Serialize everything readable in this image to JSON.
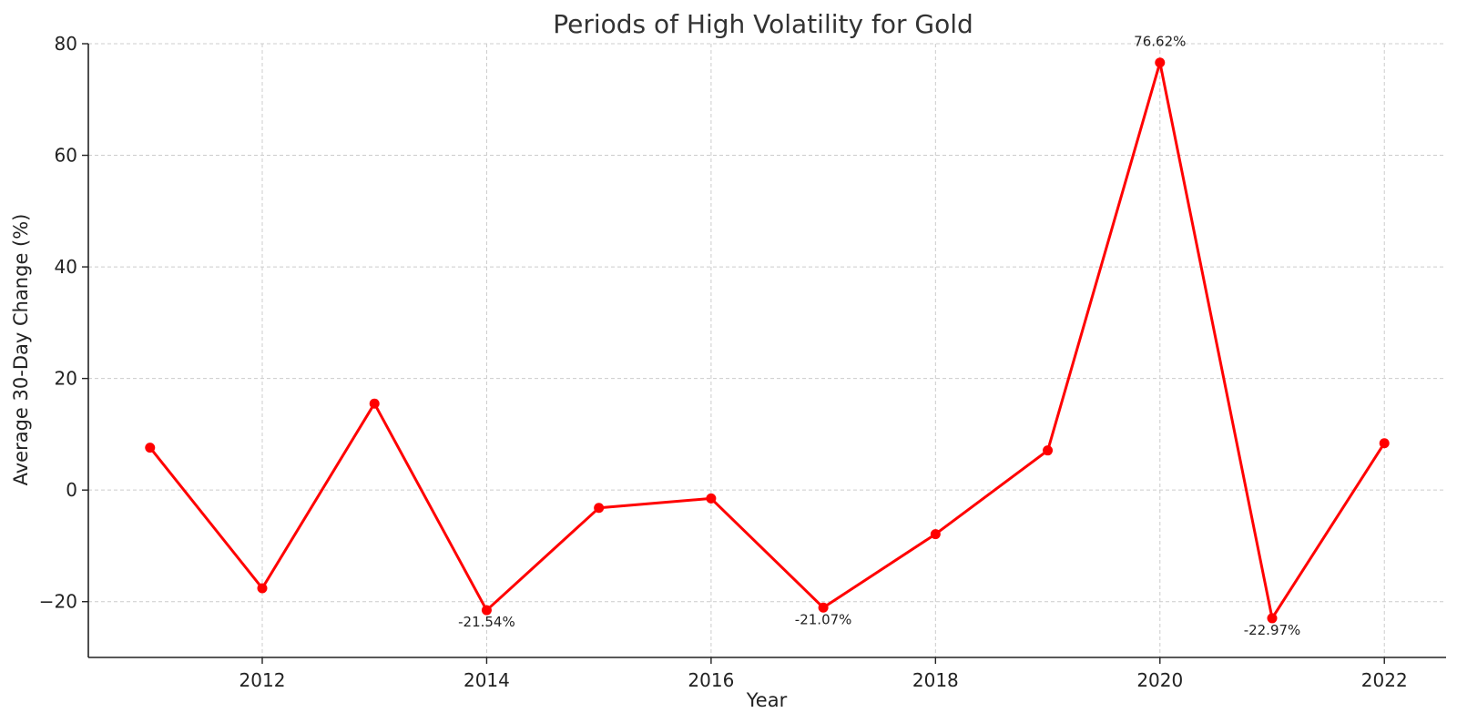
{
  "chart_data": {
    "type": "line",
    "title": "Periods of High Volatility for Gold",
    "xlabel": "Year",
    "ylabel": "Average 30-Day Change (%)",
    "x": [
      2011,
      2012,
      2013,
      2014,
      2015,
      2016,
      2017,
      2018,
      2019,
      2020,
      2021,
      2022
    ],
    "series": [
      {
        "values": [
          7.6,
          -17.6,
          15.5,
          -21.54,
          -3.2,
          -1.5,
          -21.07,
          -7.9,
          7.1,
          76.62,
          -22.97,
          8.4
        ],
        "color": "#ff0000"
      }
    ],
    "annotations": [
      {
        "x": 2014,
        "y": -21.54,
        "text": "-21.54%"
      },
      {
        "x": 2017,
        "y": -21.07,
        "text": "-21.07%"
      },
      {
        "x": 2020,
        "y": 76.62,
        "text": "76.62%"
      },
      {
        "x": 2021,
        "y": -22.97,
        "text": "-22.97%"
      }
    ],
    "xlim": [
      2010.45,
      2022.55
    ],
    "ylim": [
      -30,
      80
    ],
    "xticks": [
      2012,
      2014,
      2016,
      2018,
      2020,
      2022
    ],
    "yticks": [
      -20,
      0,
      20,
      40,
      60,
      80
    ],
    "ytick_labels": [
      "−20",
      "0",
      "20",
      "40",
      "60",
      "80"
    ],
    "grid": true,
    "legend": "none"
  }
}
